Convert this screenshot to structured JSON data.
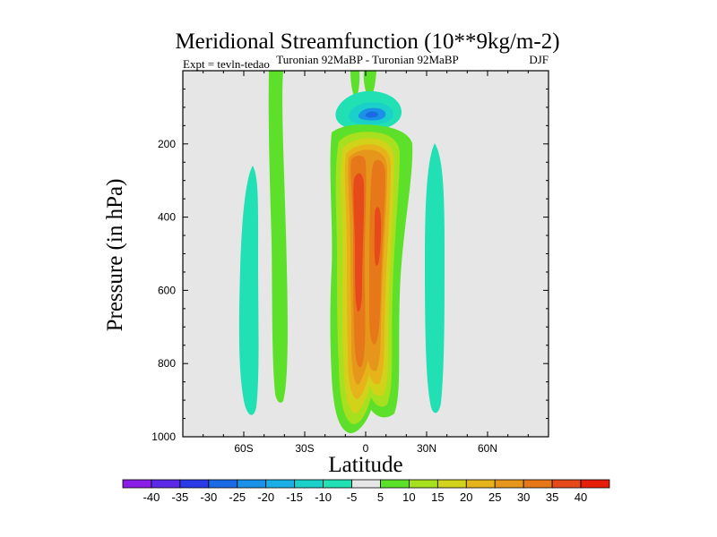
{
  "chart_data": {
    "type": "heatmap",
    "title": "Meridional Streamfunction (10**9kg/m-2)",
    "subtitle_left": "Expt = tevln-tedao",
    "subtitle_center": "Turonian  92MaBP - Turonian  92MaBP",
    "subtitle_right": "DJF",
    "xlabel": "Latitude",
    "ylabel": "Pressure (in hPa)",
    "xlim": [
      -90,
      90
    ],
    "ylim": [
      1000,
      0
    ],
    "xticks": [
      -60,
      -30,
      0,
      30,
      60
    ],
    "xtick_labels": [
      "60S",
      "30S",
      "0",
      "30N",
      "60N"
    ],
    "yticks": [
      200,
      400,
      600,
      800,
      1000
    ],
    "ytick_labels": [
      "200",
      "400",
      "600",
      "800",
      "1000"
    ],
    "background_color": "#e6e6e6",
    "colorbar": {
      "labels": [
        "-40",
        "-35",
        "-30",
        "-25",
        "-20",
        "-15",
        "-10",
        "-5",
        "5",
        "10",
        "15",
        "20",
        "25",
        "30",
        "35",
        "40"
      ],
      "colors": [
        "#8a1ee6",
        "#5a2ae6",
        "#2a3ae6",
        "#1a6ae6",
        "#1a90e6",
        "#1ab0e6",
        "#1ad0c8",
        "#20e0b4",
        "#e6e6e6",
        "#5ce02a",
        "#a6e01e",
        "#d2d21a",
        "#e6b41a",
        "#e6961a",
        "#e6781a",
        "#e64a1a",
        "#e61e0a"
      ]
    }
  }
}
